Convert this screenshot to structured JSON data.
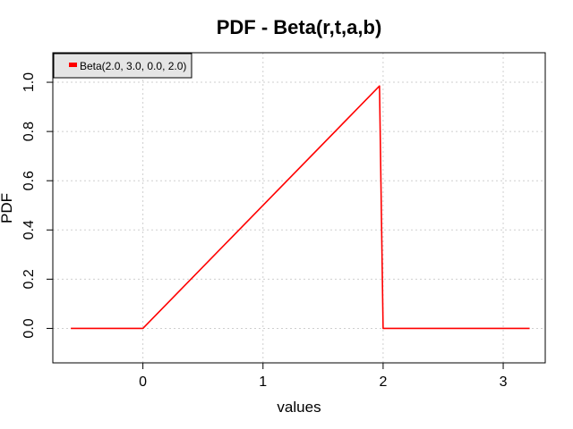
{
  "chart_data": {
    "type": "line",
    "title": "PDF - Beta(r,t,a,b)",
    "xlabel": "values",
    "ylabel": "PDF",
    "xlim": [
      -0.75,
      3.35
    ],
    "ylim": [
      -0.14,
      1.12
    ],
    "xticks": [
      0,
      1,
      2,
      3
    ],
    "yticks": [
      0.0,
      0.2,
      0.4,
      0.6,
      0.8,
      1.0
    ],
    "xtick_labels": [
      "0",
      "1",
      "2",
      "3"
    ],
    "ytick_labels": [
      "0.0",
      "0.2",
      "0.4",
      "0.6",
      "0.8",
      "1.0"
    ],
    "grid": true,
    "legend_position": "top-left",
    "series": [
      {
        "name": "Beta(2.0, 3.0, 0.0, 2.0)",
        "color": "#ff0000",
        "x": [
          -0.6,
          -0.01,
          0.0,
          0.02,
          1.97,
          1.97,
          2.0,
          3.22
        ],
        "y": [
          0.0,
          0.0,
          0.0,
          0.01,
          0.985,
          0.985,
          0.0,
          0.0
        ]
      }
    ]
  }
}
